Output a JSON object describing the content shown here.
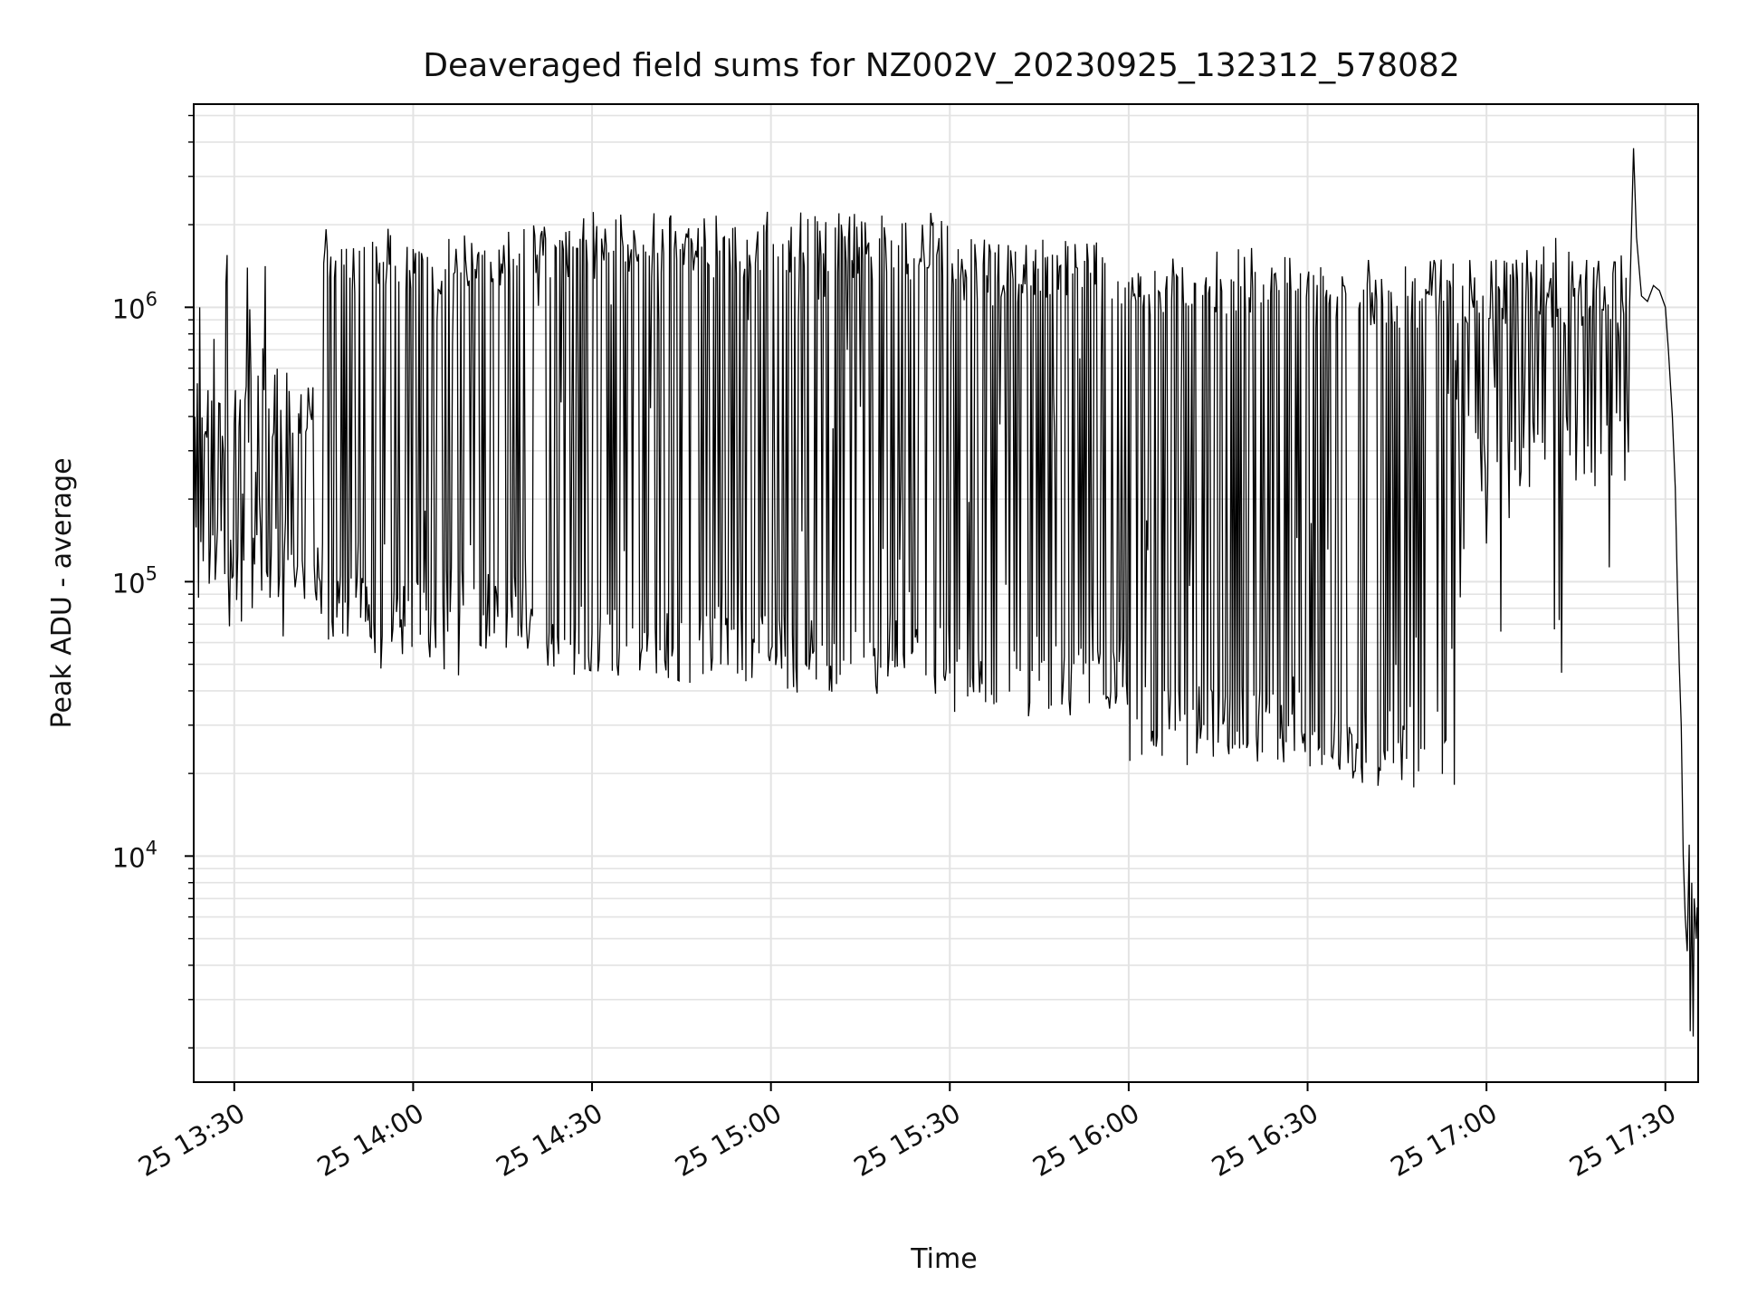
{
  "chart_data": {
    "type": "line",
    "title": "Deaveraged field sums for NZ002V_20230925_132312_578082",
    "xlabel": "Time",
    "ylabel": "Peak ADU - average",
    "xscale": "time",
    "yscale": "log",
    "xlim": [
      "2023-09-25 13:23:12",
      "2023-09-25 17:35:30"
    ],
    "ylim": [
      1500,
      5500000
    ],
    "x_ticks": [
      {
        "t": "2023-09-25 13:30",
        "label": "25 13:30"
      },
      {
        "t": "2023-09-25 14:00",
        "label": "25 14:00"
      },
      {
        "t": "2023-09-25 14:30",
        "label": "25 14:30"
      },
      {
        "t": "2023-09-25 15:00",
        "label": "25 15:00"
      },
      {
        "t": "2023-09-25 15:30",
        "label": "25 15:30"
      },
      {
        "t": "2023-09-25 16:00",
        "label": "25 16:00"
      },
      {
        "t": "2023-09-25 16:30",
        "label": "25 16:30"
      },
      {
        "t": "2023-09-25 17:00",
        "label": "25 17:00"
      },
      {
        "t": "2023-09-25 17:30",
        "label": "25 17:30"
      }
    ],
    "y_ticks": [
      {
        "value": 10000,
        "base": "10",
        "exp": "4"
      },
      {
        "value": 100000,
        "base": "10",
        "exp": "5"
      },
      {
        "value": 1000000,
        "base": "10",
        "exp": "6"
      }
    ],
    "grid": true,
    "legend": "none",
    "series_color": "#000000",
    "segments": [
      {
        "start": "2023-09-25 13:23:12",
        "end": "2023-09-25 13:45:00",
        "high": 380000,
        "low": 120000,
        "spike_high": 1600000,
        "spike_low": 60000
      },
      {
        "start": "2023-09-25 13:45:00",
        "end": "2023-09-25 14:20:00",
        "high": 1300000,
        "low": 80000,
        "spike_high": 1700000,
        "spike_low": 44000
      },
      {
        "start": "2023-09-25 14:20:00",
        "end": "2023-09-25 15:00:00",
        "high": 1500000,
        "low": 60000,
        "spike_high": 1800000,
        "spike_low": 47000
      },
      {
        "start": "2023-09-25 15:00:00",
        "end": "2023-09-25 15:30:00",
        "high": 1500000,
        "low": 55000,
        "spike_high": 1800000,
        "spike_low": 42000
      },
      {
        "start": "2023-09-25 15:30:00",
        "end": "2023-09-25 16:00:00",
        "high": 1200000,
        "low": 45000,
        "spike_high": 1500000,
        "spike_low": 36000
      },
      {
        "start": "2023-09-25 16:00:00",
        "end": "2023-09-25 16:30:00",
        "high": 1100000,
        "low": 30000,
        "spike_high": 1300000,
        "spike_low": 25000
      },
      {
        "start": "2023-09-25 16:30:00",
        "end": "2023-09-25 16:55:00",
        "high": 1000000,
        "low": 25000,
        "spike_high": 1300000,
        "spike_low": 20000
      },
      {
        "start": "2023-09-25 16:55:00",
        "end": "2023-09-25 17:24:00",
        "high": 1000000,
        "low": 300000,
        "spike_high": 1800000,
        "spike_low": 42000
      }
    ],
    "tail_points": [
      [
        "2023-09-25 17:24:00",
        1000000
      ],
      [
        "2023-09-25 17:24:40",
        3800000
      ],
      [
        "2023-09-25 17:25:10",
        1800000
      ],
      [
        "2023-09-25 17:26:00",
        1100000
      ],
      [
        "2023-09-25 17:27:00",
        1050000
      ],
      [
        "2023-09-25 17:28:00",
        1200000
      ],
      [
        "2023-09-25 17:29:00",
        1150000
      ],
      [
        "2023-09-25 17:30:00",
        1000000
      ],
      [
        "2023-09-25 17:30:30",
        700000
      ],
      [
        "2023-09-25 17:31:10",
        400000
      ],
      [
        "2023-09-25 17:31:40",
        220000
      ],
      [
        "2023-09-25 17:32:00",
        100000
      ],
      [
        "2023-09-25 17:32:20",
        50000
      ],
      [
        "2023-09-25 17:32:40",
        30000
      ],
      [
        "2023-09-25 17:33:00",
        10000
      ],
      [
        "2023-09-25 17:33:20",
        6000
      ],
      [
        "2023-09-25 17:33:40",
        4500
      ],
      [
        "2023-09-25 17:34:00",
        11000
      ],
      [
        "2023-09-25 17:34:10",
        2300
      ],
      [
        "2023-09-25 17:34:25",
        8000
      ],
      [
        "2023-09-25 17:34:40",
        2200
      ],
      [
        "2023-09-25 17:34:50",
        7000
      ],
      [
        "2023-09-25 17:35:00",
        6000
      ],
      [
        "2023-09-25 17:35:10",
        5000
      ],
      [
        "2023-09-25 17:35:20",
        6500
      ],
      [
        "2023-09-25 17:35:30",
        6000
      ]
    ]
  }
}
